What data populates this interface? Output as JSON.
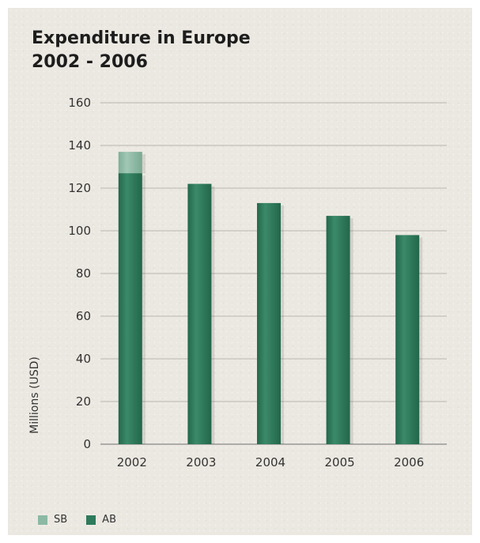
{
  "chart_data": {
    "type": "bar",
    "title": "Expenditure in Europe",
    "subtitle": "2002 - 2006",
    "xlabel": "",
    "ylabel": "Millions (USD)",
    "categories": [
      "2002",
      "2003",
      "2004",
      "2005",
      "2006"
    ],
    "ylim": [
      0,
      160
    ],
    "yticks": [
      0,
      20,
      40,
      60,
      80,
      100,
      120,
      140,
      160
    ],
    "grid": true,
    "stacked": true,
    "legend_position": "bottom-left",
    "series": [
      {
        "name": "AB",
        "values": [
          127,
          122,
          113,
          107,
          98
        ],
        "color": "#2e7a5c"
      },
      {
        "name": "SB",
        "values": [
          10,
          0,
          0,
          0,
          0
        ],
        "color": "#8cb9a4"
      }
    ]
  }
}
